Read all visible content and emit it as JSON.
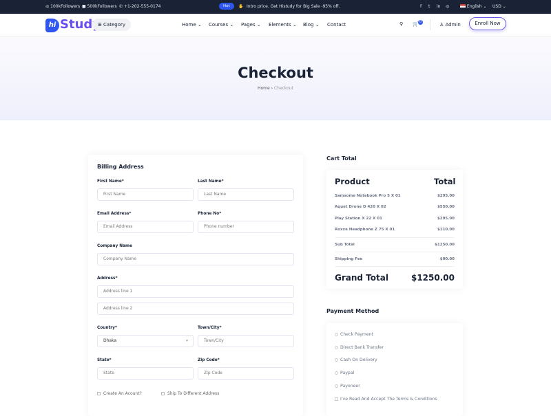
{
  "topbar": {
    "instagram": "100kFollowers",
    "facebook": "500kFollowers",
    "phone": "+1-202-555-0174",
    "hot": "Hot",
    "promo": "Intro price. Get Histudy for Big Sale -95% off.",
    "language": "English",
    "currency": "USD"
  },
  "header": {
    "logo_mark": "hi",
    "logo_text": "Study",
    "category": "Category",
    "nav": [
      "Home",
      "Courses",
      "Pages",
      "Elements",
      "Blog",
      "Contact"
    ],
    "cart_count": "0",
    "user": "Admin",
    "enroll": "Enroll Now"
  },
  "hero": {
    "title": "Checkout",
    "breadcrumb": [
      "Home",
      "Checkout"
    ]
  },
  "billing": {
    "title": "Billing Address",
    "first_name": {
      "label": "First Name*",
      "placeholder": "First Name"
    },
    "last_name": {
      "label": "Last Name*",
      "placeholder": "Last Name"
    },
    "email": {
      "label": "Email Address*",
      "placeholder": "Email Address"
    },
    "phone": {
      "label": "Phone No*",
      "placeholder": "Phone number"
    },
    "company": {
      "label": "Company Name",
      "placeholder": "Company Name"
    },
    "address": {
      "label": "Address*",
      "placeholder1": "Address line 1",
      "placeholder2": "Address line 2"
    },
    "country": {
      "label": "Country*",
      "value": "Dhaka"
    },
    "town": {
      "label": "Town/City*",
      "placeholder": "Town/City"
    },
    "state": {
      "label": "State*",
      "placeholder": "State"
    },
    "zip": {
      "label": "Zip Code*",
      "placeholder": "Zip Code"
    },
    "create_account": "Create An Acount?",
    "ship_different": "Ship To Different Address"
  },
  "cart": {
    "title": "Cart Total",
    "product_h": "Product",
    "total_h": "Total",
    "items": [
      {
        "name": "Samsome Notebook Pro 5 X 01",
        "price": "$295.00"
      },
      {
        "name": "Aquet Drone D 420 X 02",
        "price": "$550.00"
      },
      {
        "name": "Play Station X 22 X 01",
        "price": "$295.00"
      },
      {
        "name": "Roxxe Headphone Z 75 X 01",
        "price": "$110.00"
      }
    ],
    "subtotal_label": "Sub Total",
    "subtotal": "$1250.00",
    "shipping_label": "Shipping Fee",
    "shipping": "$00.00",
    "grand_label": "Grand Total",
    "grand": "$1250.00"
  },
  "payment": {
    "title": "Payment Method",
    "options": [
      "Check Payment",
      "Direct Bank Transfer",
      "Cash On Delivery",
      "Paypal",
      "Payoneer",
      "I've Read And Accept The Terms & Conditions"
    ]
  }
}
